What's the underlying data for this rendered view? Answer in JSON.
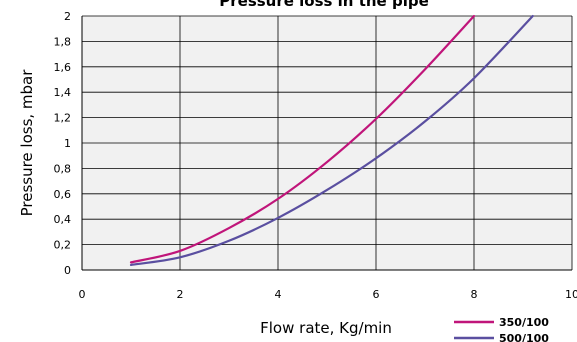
{
  "chart_data": {
    "type": "line",
    "title": "Pressure loss in the pipe",
    "xlabel": "Flow rate, Kg/min",
    "ylabel": "Pressure loss, mbar",
    "xlim": [
      0,
      10
    ],
    "ylim": [
      0,
      2
    ],
    "x_ticks": [
      "0",
      "2",
      "4",
      "6",
      "8",
      "10"
    ],
    "y_ticks": [
      "0",
      "0,2",
      "0,4",
      "0,6",
      "0,8",
      "1",
      "1,2",
      "1,4",
      "1,6",
      "1,8",
      "2"
    ],
    "grid": true,
    "legend_position": "bottom-right",
    "series": [
      {
        "name": "350/100",
        "color": "#c0157a",
        "x": [
          1,
          2,
          3,
          4,
          5,
          6,
          7,
          8
        ],
        "y": [
          0.06,
          0.15,
          0.33,
          0.56,
          0.85,
          1.19,
          1.58,
          2.0
        ]
      },
      {
        "name": "500/100",
        "color": "#5a4fa0",
        "x": [
          1,
          2,
          3,
          4,
          5,
          6,
          7,
          8,
          9.2
        ],
        "y": [
          0.04,
          0.1,
          0.23,
          0.41,
          0.63,
          0.88,
          1.17,
          1.51,
          2.0
        ]
      }
    ]
  }
}
